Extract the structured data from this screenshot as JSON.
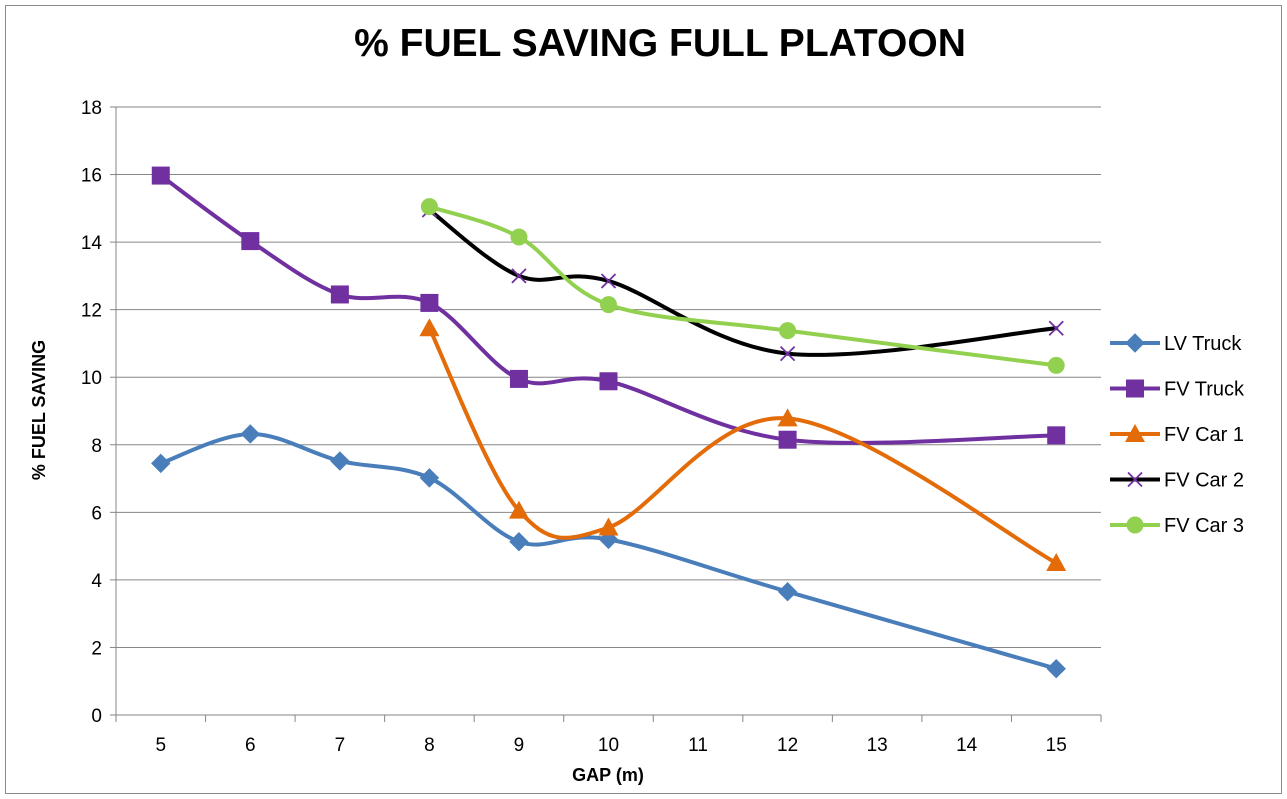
{
  "chart_data": {
    "type": "line",
    "title": "% FUEL SAVING FULL PLATOON",
    "xlabel": "GAP (m)",
    "ylabel": "% FUEL SAVING",
    "categories": [
      "5",
      "6",
      "7",
      "8",
      "9",
      "10",
      "11",
      "12",
      "13",
      "14",
      "15"
    ],
    "ylim": [
      0,
      18
    ],
    "yticks": [
      0,
      2,
      4,
      6,
      8,
      10,
      12,
      14,
      16,
      18
    ],
    "grid": true,
    "legend_position": "right",
    "series": [
      {
        "name": "LV Truck",
        "color": "#4a7ebb",
        "marker": "diamond",
        "points": [
          [
            5,
            7.45
          ],
          [
            6,
            8.32
          ],
          [
            7,
            7.52
          ],
          [
            8,
            7.02
          ],
          [
            9,
            5.13
          ],
          [
            10,
            5.2
          ],
          [
            12,
            3.65
          ],
          [
            15,
            1.37
          ]
        ]
      },
      {
        "name": "FV Truck",
        "color": "#7030a0",
        "marker": "square",
        "points": [
          [
            5,
            15.97
          ],
          [
            6,
            14.03
          ],
          [
            7,
            12.45
          ],
          [
            8,
            12.2
          ],
          [
            9,
            9.95
          ],
          [
            10,
            9.88
          ],
          [
            12,
            8.15
          ],
          [
            15,
            8.28
          ]
        ]
      },
      {
        "name": "FV Car 1",
        "color": "#e36c09",
        "marker": "triangle",
        "points": [
          [
            8,
            11.45
          ],
          [
            9,
            6.05
          ],
          [
            10,
            5.55
          ],
          [
            12,
            8.78
          ],
          [
            15,
            4.5
          ]
        ]
      },
      {
        "name": "FV Car 2",
        "color": "#000000",
        "marker": "x",
        "points": [
          [
            8,
            14.95
          ],
          [
            9,
            13.0
          ],
          [
            10,
            12.85
          ],
          [
            12,
            10.7
          ],
          [
            15,
            11.45
          ]
        ]
      },
      {
        "name": "FV Car 3",
        "color": "#92d050",
        "marker": "circle",
        "points": [
          [
            8,
            15.05
          ],
          [
            9,
            14.15
          ],
          [
            10,
            12.15
          ],
          [
            12,
            11.38
          ],
          [
            15,
            10.35
          ]
        ]
      }
    ]
  }
}
